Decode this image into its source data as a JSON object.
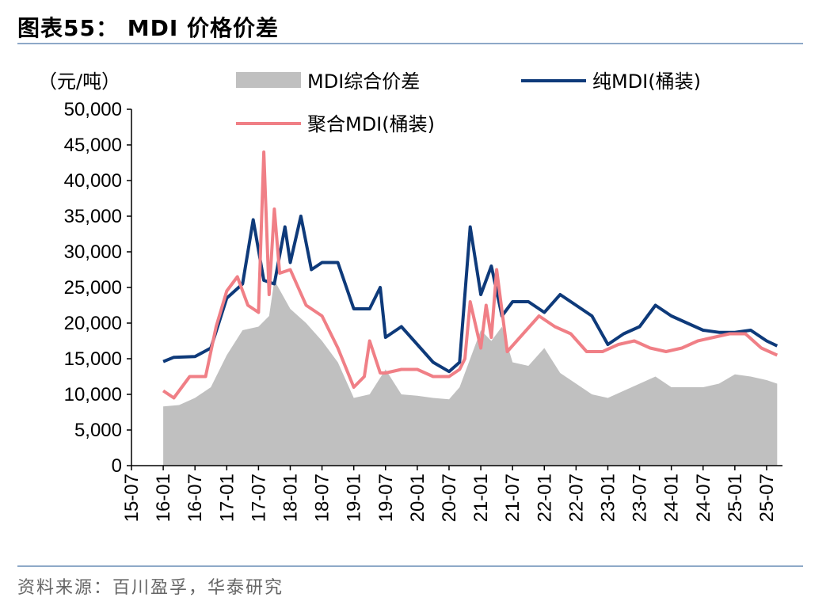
{
  "title": "图表55：  MDI 价格价差",
  "source": "资料来源：百川盈孚，华泰研究",
  "chart_data": {
    "type": "line",
    "unit_label": "（元/吨）",
    "x_ticks": [
      "15-07",
      "16-01",
      "16-07",
      "17-01",
      "17-07",
      "18-01",
      "18-07",
      "19-01",
      "19-07",
      "20-01",
      "20-07",
      "21-01",
      "21-07",
      "22-01",
      "22-07",
      "23-01",
      "23-07",
      "24-01",
      "24-07",
      "25-01",
      "25-07"
    ],
    "y_ticks": [
      "0",
      "5,000",
      "10,000",
      "15,000",
      "20,000",
      "25,000",
      "30,000",
      "35,000",
      "40,000",
      "45,000",
      "50,000"
    ],
    "ylim": [
      0,
      50000
    ],
    "legend_placement": "top",
    "series": [
      {
        "name": "MDI综合价差",
        "type": "area",
        "color": "#c0c0c0",
        "x": [
          "16-01",
          "16-04",
          "16-07",
          "16-10",
          "17-01",
          "17-04",
          "17-07",
          "17-09",
          "17-10",
          "18-01",
          "18-04",
          "18-07",
          "18-10",
          "19-01",
          "19-04",
          "19-07",
          "19-10",
          "20-01",
          "20-04",
          "20-07",
          "20-09",
          "20-11",
          "21-01",
          "21-03",
          "21-05",
          "21-07",
          "21-10",
          "22-01",
          "22-04",
          "22-07",
          "22-10",
          "23-01",
          "23-04",
          "23-07",
          "23-10",
          "24-01",
          "24-04",
          "24-07",
          "24-10",
          "25-01",
          "25-04",
          "25-07",
          "25-09"
        ],
        "values": [
          8300,
          8500,
          9500,
          11000,
          15500,
          19000,
          19500,
          21000,
          26000,
          22000,
          20000,
          17500,
          14500,
          9500,
          10000,
          13500,
          10000,
          9800,
          9500,
          9300,
          11000,
          15000,
          19000,
          17500,
          19500,
          14500,
          14000,
          16500,
          13000,
          11500,
          10000,
          9500,
          10500,
          11500,
          12500,
          11000,
          11000,
          11000,
          11500,
          12800,
          12500,
          12000,
          11500
        ]
      },
      {
        "name": "纯MDI(桶装)",
        "type": "line",
        "color": "#0e3a7a",
        "x": [
          "16-01",
          "16-03",
          "16-07",
          "16-10",
          "17-01",
          "17-04",
          "17-06",
          "17-08",
          "17-10",
          "17-12",
          "18-01",
          "18-03",
          "18-05",
          "18-07",
          "18-10",
          "19-01",
          "19-04",
          "19-06",
          "19-07",
          "19-10",
          "20-01",
          "20-04",
          "20-07",
          "20-09",
          "20-11",
          "21-01",
          "21-03",
          "21-05",
          "21-07",
          "21-10",
          "22-01",
          "22-04",
          "22-07",
          "22-10",
          "23-01",
          "23-04",
          "23-07",
          "23-10",
          "24-01",
          "24-04",
          "24-07",
          "24-10",
          "25-01",
          "25-04",
          "25-07",
          "25-09"
        ],
        "values": [
          14600,
          15200,
          15300,
          16500,
          23500,
          25500,
          34500,
          26000,
          25500,
          33500,
          28500,
          35000,
          27500,
          28500,
          28500,
          22000,
          22000,
          25000,
          18000,
          19500,
          17000,
          14500,
          13200,
          14500,
          33500,
          24000,
          28000,
          21000,
          23000,
          23000,
          21500,
          24000,
          22500,
          21000,
          17000,
          18500,
          19500,
          22500,
          21000,
          20000,
          19000,
          18700,
          18700,
          19000,
          17500,
          16800
        ]
      },
      {
        "name": "聚合MDI(桶装)",
        "type": "line",
        "color": "#f07f86",
        "x": [
          "16-01",
          "16-03",
          "16-06",
          "16-09",
          "16-11",
          "17-01",
          "17-03",
          "17-05",
          "17-07",
          "17-08",
          "17-09",
          "17-10",
          "17-11",
          "18-01",
          "18-04",
          "18-07",
          "18-10",
          "19-01",
          "19-03",
          "19-04",
          "19-06",
          "19-07",
          "19-10",
          "20-01",
          "20-04",
          "20-07",
          "20-09",
          "20-10",
          "20-11",
          "21-01",
          "21-02",
          "21-03",
          "21-04",
          "21-06",
          "21-09",
          "21-12",
          "22-03",
          "22-06",
          "22-09",
          "22-12",
          "23-03",
          "23-06",
          "23-09",
          "23-12",
          "24-03",
          "24-06",
          "24-09",
          "24-12",
          "25-03",
          "25-06",
          "25-09"
        ],
        "values": [
          10500,
          9500,
          12500,
          12500,
          19500,
          24500,
          26500,
          22500,
          21500,
          44000,
          24000,
          36000,
          27000,
          27500,
          22500,
          21000,
          16500,
          11000,
          12500,
          17500,
          13000,
          13000,
          13500,
          13500,
          12500,
          12500,
          13500,
          15000,
          23000,
          16500,
          22500,
          18000,
          27500,
          16000,
          18500,
          21000,
          19500,
          18500,
          16000,
          16000,
          17000,
          17500,
          16500,
          16000,
          16500,
          17500,
          18000,
          18500,
          18500,
          16500,
          15500
        ]
      }
    ]
  }
}
